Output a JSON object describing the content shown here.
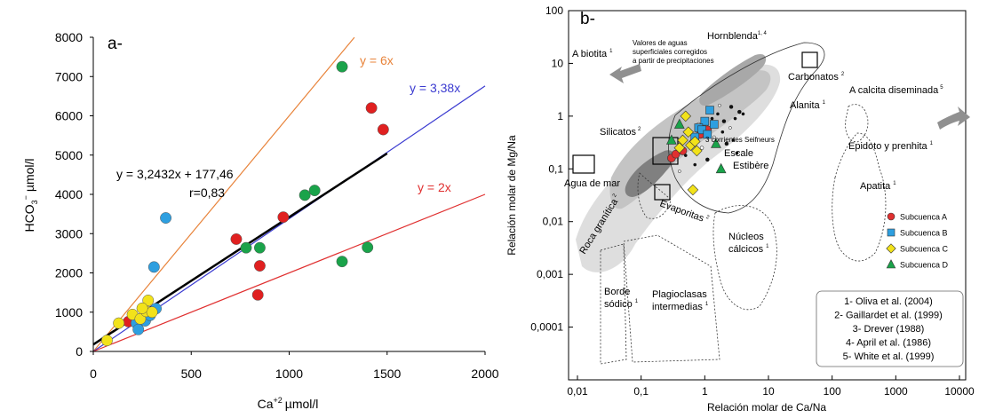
{
  "chart_data": [
    {
      "type": "scatter",
      "panel_label": "a-",
      "xlabel": "Ca",
      "xlabel_sup": "+2",
      "xlabel_unit": "µmol/l",
      "ylabel": "HCO",
      "ylabel_sub": "3",
      "ylabel_sup": "−",
      "ylabel_unit": "µmol/l",
      "xlim": [
        0,
        2000
      ],
      "ylim": [
        0,
        8000
      ],
      "xticks": [
        0,
        500,
        1000,
        1500,
        2000
      ],
      "yticks": [
        0,
        1000,
        2000,
        3000,
        4000,
        5000,
        6000,
        7000,
        8000
      ],
      "lines": [
        {
          "label": "y = 6x",
          "slope": 6,
          "intercept": 0,
          "color": "#e8833a",
          "x_end": 1333
        },
        {
          "label": "y = 3,38x",
          "slope": 3.38,
          "intercept": 0,
          "color": "#3a3ad0",
          "x_end": 2000
        },
        {
          "label": "y = 2x",
          "slope": 2,
          "intercept": 0,
          "color": "#e03030",
          "x_end": 2000
        },
        {
          "label": "y = 3,2432x + 177,46",
          "slope": 3.2432,
          "intercept": 177.46,
          "color": "#000000",
          "x_end": 1500
        }
      ],
      "annotations": {
        "regression": "y = 3,2432x + 177,46",
        "r": "r=0,83"
      },
      "series": [
        {
          "name": "",
          "color": "#e02020",
          "points": [
            [
              180,
              760
            ],
            [
              730,
              2860
            ],
            [
              850,
              2180
            ],
            [
              970,
              3420
            ],
            [
              840,
              1440
            ],
            [
              1420,
              6200
            ],
            [
              1480,
              5650
            ]
          ]
        },
        {
          "name": "",
          "color": "#1aa34a",
          "points": [
            [
              1270,
              7250
            ],
            [
              780,
              2640
            ],
            [
              850,
              2640
            ],
            [
              1080,
              3980
            ],
            [
              1130,
              4100
            ],
            [
              1270,
              2290
            ],
            [
              1400,
              2650
            ]
          ]
        },
        {
          "name": "",
          "color": "#2e9fe0",
          "points": [
            [
              370,
              3400
            ],
            [
              310,
              2150
            ],
            [
              220,
              720
            ],
            [
              230,
              560
            ],
            [
              265,
              780
            ],
            [
              290,
              920
            ],
            [
              320,
              1090
            ]
          ]
        },
        {
          "name": "",
          "color": "#f2e21a",
          "points": [
            [
              70,
              280
            ],
            [
              130,
              720
            ],
            [
              200,
              940
            ],
            [
              240,
              830
            ],
            [
              270,
              1020
            ],
            [
              300,
              1000
            ],
            [
              280,
              1300
            ],
            [
              250,
              1100
            ]
          ]
        }
      ]
    },
    {
      "type": "scatter",
      "panel_label": "b-",
      "xscale": "log",
      "yscale": "log",
      "xlabel": "Relación molar de Ca/Na",
      "ylabel": "Relación molar de Mg/Na",
      "xticks": [
        "0,01",
        "0,1",
        "1",
        "10",
        "100",
        "1000",
        "10000"
      ],
      "yticks": [
        "100",
        "10",
        "1",
        "0,1",
        "0,01",
        "0,001",
        "0,0001"
      ],
      "region_labels": {
        "hornblenda": "Hornblenda",
        "hornblenda_ref": "1, 4",
        "valores": "Valores de aguas superficiales corregidos a partir de precipitaciones",
        "biotita": "A biotita",
        "biotita_ref": "1",
        "carbonatos": "Carbonatos",
        "carbonatos_ref": "2",
        "calcita": "A calcita diseminada",
        "calcita_ref": "5",
        "alanita": "Alanita",
        "alanita_ref": "1",
        "silicatos": "Silicatos",
        "silicatos_ref": "2",
        "corrientes": "3 corrientes Seifneurs",
        "escale": "Escale",
        "estibere": "Estibère",
        "epidoto": "Epidoto y prenhita",
        "epidoto_ref": "1",
        "apatita": "Apatita",
        "apatita_ref": "1",
        "agua_mar": "Agua de mar",
        "roca": "Roca granítica",
        "roca_ref": "2",
        "evaporitas": "Evaporitas",
        "evaporitas_ref": "2",
        "nucleos": "Núcleos",
        "calcicos": "cálcicos",
        "calcicos_ref": "1",
        "borde": "Borde",
        "sodico": "sódico",
        "sodico_ref": "1",
        "plagioclasas": "Plagioclasas",
        "intermedias": "intermedias",
        "intermedias_ref": "1"
      },
      "legend": [
        {
          "name": "Subcuenca A",
          "color": "#e03030",
          "marker": "circle"
        },
        {
          "name": "Subcuenca B",
          "color": "#2e9fe0",
          "marker": "square"
        },
        {
          "name": "Subcuenca C",
          "color": "#f2e21a",
          "marker": "diamond"
        },
        {
          "name": "Subcuenca D",
          "color": "#1aa34a",
          "marker": "triangle"
        }
      ],
      "references": [
        "1- Oliva et al. (2004)",
        "2- Gaillardet et al. (1999)",
        "3- Drever (1988)",
        "4- April et al. (1986)",
        "5- White et al. (1999)"
      ],
      "series": [
        {
          "name": "Subcuenca A",
          "color": "#e03030",
          "marker": "circle",
          "points": [
            [
              0.3,
              0.16
            ],
            [
              0.35,
              0.19
            ],
            [
              0.45,
              0.22
            ],
            [
              0.85,
              0.45
            ],
            [
              1.1,
              0.55
            ]
          ]
        },
        {
          "name": "Subcuenca B",
          "color": "#2e9fe0",
          "marker": "square",
          "points": [
            [
              1.2,
              1.3
            ],
            [
              1.0,
              0.8
            ],
            [
              0.8,
              0.6
            ],
            [
              1.4,
              0.7
            ],
            [
              0.9,
              0.55
            ],
            [
              0.7,
              0.4
            ],
            [
              1.1,
              0.45
            ]
          ]
        },
        {
          "name": "Subcuenca C",
          "color": "#f2e21a",
          "marker": "diamond",
          "points": [
            [
              0.5,
              1.0
            ],
            [
              0.45,
              0.35
            ],
            [
              0.6,
              0.28
            ],
            [
              0.7,
              0.33
            ],
            [
              0.4,
              0.25
            ],
            [
              0.55,
              0.5
            ],
            [
              0.75,
              0.22
            ],
            [
              0.65,
              0.04
            ]
          ]
        },
        {
          "name": "Subcuenca D",
          "color": "#1aa34a",
          "marker": "triangle",
          "points": [
            [
              0.4,
              0.7
            ],
            [
              0.3,
              0.35
            ],
            [
              1.5,
              0.3
            ],
            [
              1.8,
              0.1
            ]
          ]
        }
      ]
    }
  ]
}
